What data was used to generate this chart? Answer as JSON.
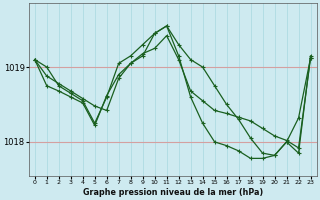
{
  "title": "Graphe pression niveau de la mer (hPa)",
  "bg_color": "#ceeaf0",
  "grid_color_v": "#a8d8df",
  "grid_color_h": "#d4a0a0",
  "line_color": "#1a6020",
  "x_labels": [
    "0",
    "1",
    "2",
    "3",
    "4",
    "5",
    "6",
    "7",
    "8",
    "9",
    "10",
    "11",
    "12",
    "13",
    "14",
    "15",
    "16",
    "17",
    "18",
    "19",
    "20",
    "21",
    "22",
    "23"
  ],
  "y_ticks": [
    1018,
    1019
  ],
  "ylim_min": 1017.55,
  "ylim_max": 1019.85,
  "s1y": [
    1019.1,
    1019.0,
    1018.75,
    1018.65,
    1018.55,
    1018.25,
    1018.6,
    1019.05,
    1019.15,
    1019.3,
    1019.45,
    1019.55,
    1019.3,
    1019.1,
    1019.0,
    1018.75,
    1018.5,
    1018.3,
    1018.05,
    1017.85,
    1017.82,
    1018.0,
    1017.85,
    1019.15
  ],
  "s2y": [
    1019.1,
    1018.75,
    1018.68,
    1018.6,
    1018.52,
    1018.22,
    1018.62,
    1018.9,
    1019.05,
    1019.15,
    1019.45,
    1019.55,
    1019.15,
    1018.6,
    1018.25,
    1018.0,
    1017.95,
    1017.88,
    1017.78,
    1017.78,
    1017.82,
    1018.0,
    1018.32,
    1019.12
  ],
  "s3y": [
    1019.1,
    1018.88,
    1018.78,
    1018.68,
    1018.58,
    1018.48,
    1018.42,
    1018.85,
    1019.05,
    1019.18,
    1019.25,
    1019.42,
    1019.1,
    1018.68,
    1018.55,
    1018.42,
    1018.38,
    1018.33,
    1018.28,
    1018.18,
    1018.08,
    1018.02,
    1017.92,
    1019.12
  ],
  "marker": "+",
  "marker_size": 3.0,
  "line_width": 0.9,
  "xlabel_fontsize": 5.8,
  "ytick_fontsize": 6.0,
  "xtick_fontsize": 4.5
}
